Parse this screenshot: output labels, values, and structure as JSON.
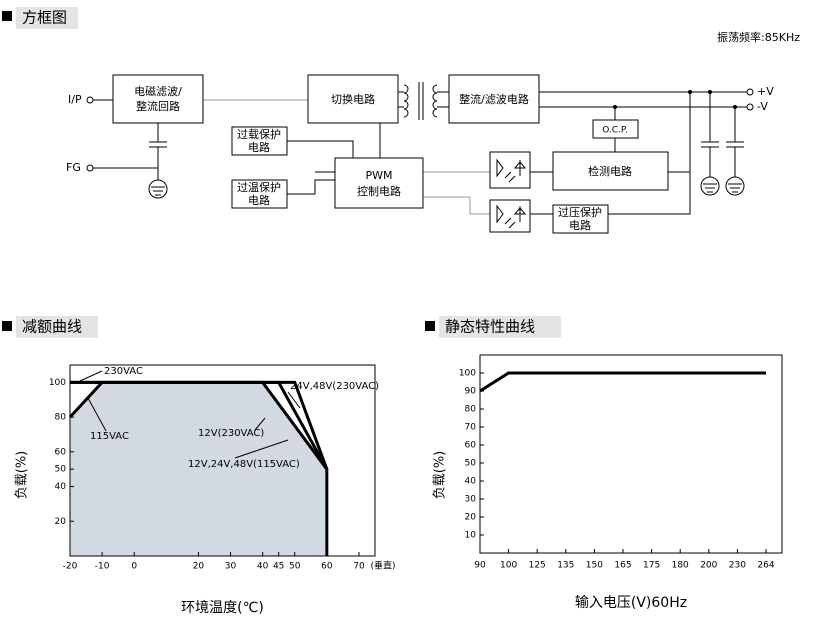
{
  "diagram": {
    "title": "方框图",
    "frequency": "振荡频率:85KHz",
    "nodes": [
      {
        "label": [
          "电磁滤波/",
          "整流回路"
        ]
      },
      {
        "label": [
          "切换电路"
        ]
      },
      {
        "label": [
          "整流/滤波电路"
        ]
      },
      {
        "label": [
          "O.C.P."
        ]
      },
      {
        "label": [
          "检测电路"
        ]
      },
      {
        "label": [
          "过载保护",
          "电路"
        ]
      },
      {
        "label": [
          "PWM",
          "控制电路"
        ]
      },
      {
        "label": [
          "过温保护",
          "电路"
        ]
      },
      {
        "label": [
          "过压保护",
          "电路"
        ]
      }
    ],
    "ports": [
      "I/P",
      "FG",
      "+V",
      "-V"
    ]
  },
  "chart_data": [
    {
      "type": "line",
      "title": "减额曲线",
      "xlabel": "环境温度(℃)",
      "ylabel": "负载(%)",
      "x_unit": "(垂直)",
      "xlim": [
        -20,
        75
      ],
      "xticks": [
        -20,
        -10,
        0,
        20,
        30,
        40,
        45,
        50,
        60,
        70
      ],
      "ylim": [
        0,
        110
      ],
      "yticks": [
        20,
        40,
        50,
        60,
        80,
        100
      ],
      "area_color": "#d3d9e3",
      "annotations": [
        "230VAC",
        "115VAC"
      ],
      "series": [
        {
          "name": "24V,48V(230VAC)",
          "color": "#000000",
          "x": [
            -20,
            50,
            60
          ],
          "values": [
            100,
            100,
            50
          ]
        },
        {
          "name": "12V(230VAC)",
          "color": "#000000",
          "x": [
            -20,
            45,
            60
          ],
          "values": [
            100,
            100,
            50
          ]
        },
        {
          "name": "12V,24V,48V(115VAC)",
          "color": "#000000",
          "x": [
            -20,
            -10,
            40,
            60,
            60
          ],
          "values": [
            80,
            100,
            100,
            50,
            0
          ]
        }
      ]
    },
    {
      "type": "line",
      "title": "静态特性曲线",
      "xlabel": "输入电压(V)60Hz",
      "ylabel": "负载(%)",
      "categories": [
        "90",
        "100",
        "125",
        "135",
        "150",
        "165",
        "175",
        "180",
        "200",
        "230",
        "264"
      ],
      "ylim": [
        0,
        110
      ],
      "yticks": [
        10,
        20,
        30,
        40,
        50,
        60,
        70,
        80,
        90,
        100
      ],
      "series": [
        {
          "color": "#000000",
          "values": [
            90,
            100,
            100,
            100,
            100,
            100,
            100,
            100,
            100,
            100,
            100
          ]
        }
      ]
    }
  ]
}
